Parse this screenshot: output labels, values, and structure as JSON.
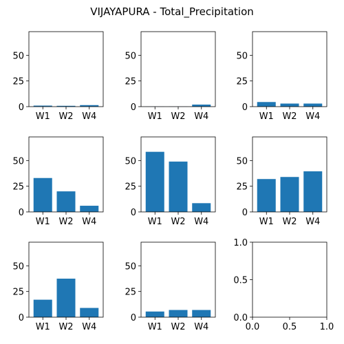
{
  "figure": {
    "title": "VIJAYAPURA - Total_Precipitation"
  },
  "chart_data": {
    "type": "bar",
    "bar_color": "#1f77b4",
    "categories": [
      "W1",
      "W2",
      "W4"
    ],
    "shared_ylim": [
      0,
      73
    ],
    "shared_yticks": [
      0,
      25,
      50
    ],
    "panels": [
      {
        "values": [
          1.0,
          0.8,
          1.5
        ]
      },
      {
        "values": [
          0.1,
          0.1,
          2.0
        ]
      },
      {
        "values": [
          4.5,
          3.0,
          3.0
        ]
      },
      {
        "values": [
          33.0,
          20.0,
          6.0
        ]
      },
      {
        "values": [
          58.5,
          49.0,
          8.5
        ]
      },
      {
        "values": [
          32.0,
          34.0,
          39.5
        ]
      },
      {
        "values": [
          17.0,
          37.5,
          9.0
        ]
      },
      {
        "values": [
          5.5,
          7.0,
          7.0
        ]
      },
      {
        "empty": true,
        "xlim": [
          0,
          1
        ],
        "ylim": [
          0,
          1
        ],
        "xticks": [
          "0.0",
          "0.5",
          "1.0"
        ],
        "yticks": [
          "0.0",
          "0.5",
          "1.0"
        ]
      }
    ]
  }
}
